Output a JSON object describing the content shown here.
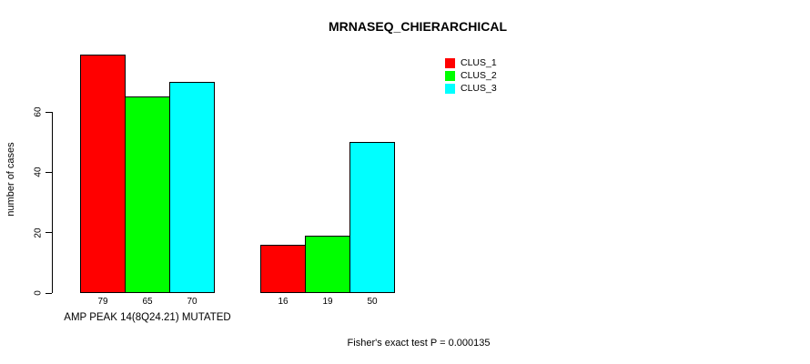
{
  "page": {
    "background_color": "#ffffff",
    "text_color": "#000000"
  },
  "chart_data": {
    "type": "bar",
    "title": "MRNASEQ_CHIERARCHICAL",
    "ylabel": "number of cases",
    "xlabel": "AMP PEAK 14(8Q24.21) MUTATED",
    "categories": [
      "AMP PEAK 14(8Q24.21) MUTATED",
      ""
    ],
    "series": [
      {
        "name": "CLUS_1",
        "color": "#ff0000",
        "values": [
          79,
          16
        ]
      },
      {
        "name": "CLUS_2",
        "color": "#00ff00",
        "values": [
          65,
          19
        ]
      },
      {
        "name": "CLUS_3",
        "color": "#00ffff",
        "values": [
          70,
          50
        ]
      }
    ],
    "bar_value_labels": [
      [
        79,
        65,
        70
      ],
      [
        16,
        19,
        50
      ]
    ],
    "yticks": [
      0,
      20,
      40,
      60
    ],
    "ylim": [
      0,
      79
    ],
    "grid": false,
    "bar_border_color": "#000000",
    "legend_position": "upper-center-right",
    "annotation": "Fisher's exact test P = 0.000135"
  }
}
